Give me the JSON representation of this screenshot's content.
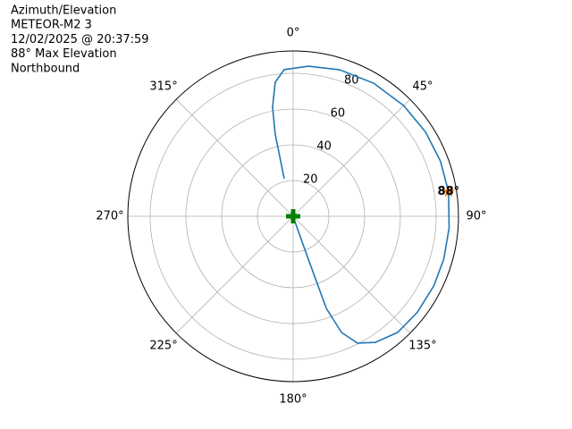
{
  "chart_data": {
    "type": "polar",
    "title_lines": [
      "Azimuth/Elevation",
      "METEOR-M2 3",
      "12/02/2025 @ 20:37:59",
      "88° Max Elevation",
      "Northbound"
    ],
    "theta_zero": "top",
    "theta_direction": "clockwise",
    "rlim": [
      0,
      92.5
    ],
    "rticks": [
      20,
      40,
      60,
      80
    ],
    "thetaticks": [
      {
        "value": 0,
        "label": "0°"
      },
      {
        "value": 45,
        "label": "45°"
      },
      {
        "value": 90,
        "label": "90°"
      },
      {
        "value": 135,
        "label": "135°"
      },
      {
        "value": 180,
        "label": "180°"
      },
      {
        "value": 225,
        "label": "225°"
      },
      {
        "value": 270,
        "label": "270°"
      },
      {
        "value": 315,
        "label": "315°"
      }
    ],
    "grid": true,
    "path": {
      "color": "#1f77b4",
      "theta": [
        346.6,
        347.7,
        349.3,
        352.4,
        356.5,
        5.8,
        17.6,
        31.2,
        45,
        57.5,
        69.5,
        81.1,
        94.3,
        105.9,
        116.3,
        127.7,
        138,
        146.9,
        153.1,
        157.4,
        160.2,
        160.5,
        161.6
      ],
      "r": [
        21.6,
        47.1,
        62.1,
        75.7,
        82.2,
        84.4,
        86,
        87,
        87.5,
        87.8,
        88,
        88,
        87.5,
        87.6,
        87.8,
        87.8,
        87.4,
        84.2,
        79.6,
        70.4,
        54.7,
        25.5,
        3.2
      ]
    },
    "markers": [
      {
        "symbol": "star",
        "theta": 81,
        "r": 88,
        "color": "#ff7f0e",
        "label": "88°"
      },
      {
        "symbol": "plus",
        "theta": 0,
        "r": 0,
        "color": "#008000"
      }
    ]
  }
}
